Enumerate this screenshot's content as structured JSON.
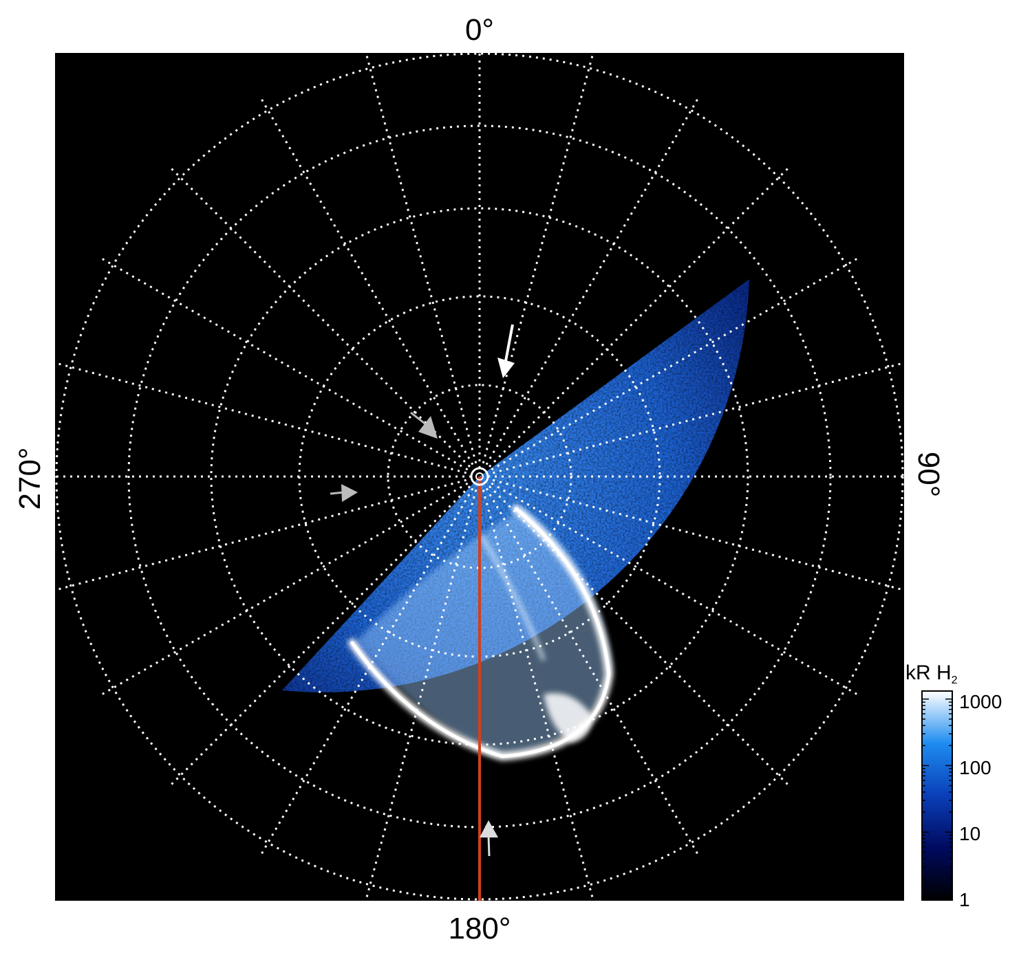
{
  "labels": {
    "top": "0°",
    "right": "90°",
    "bottom": "180°",
    "left": "270°"
  },
  "colorbar": {
    "title": "kR H",
    "title_subscript": "2",
    "scale": "log",
    "ticks": [
      "1000",
      "100",
      "10",
      "1"
    ]
  },
  "colors": {
    "background": "#000000",
    "grid": "#ffffff",
    "meridian_line": "#d2401c",
    "emission_low": "#00063a",
    "emission_mid": "#1a6fe0",
    "emission_high": "#ffffff"
  },
  "grid": {
    "style": "dotted"
  }
}
